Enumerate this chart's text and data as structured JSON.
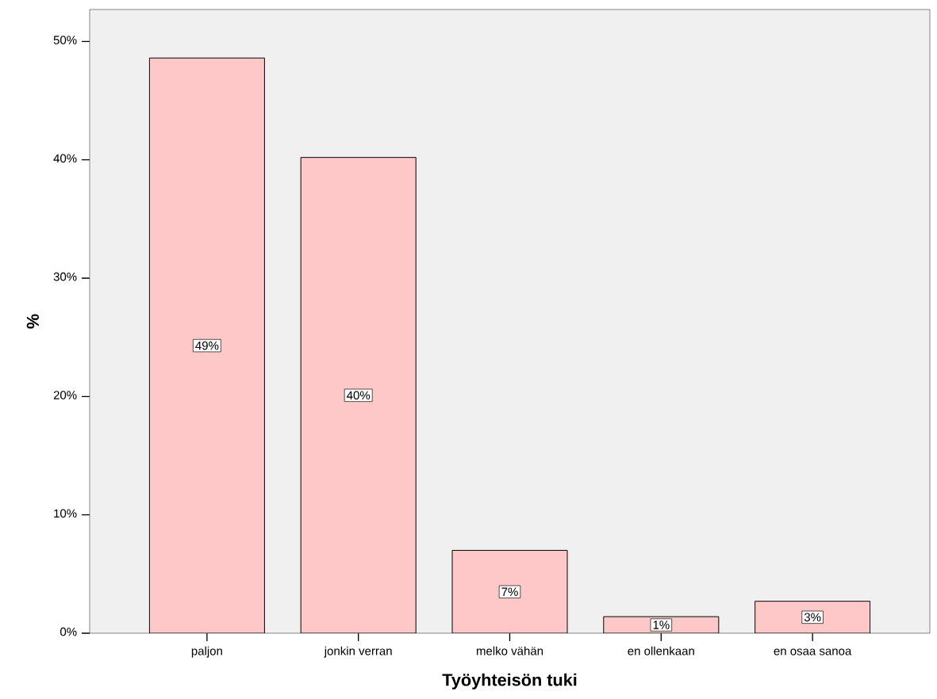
{
  "chart_data": {
    "type": "bar",
    "xlabel": "Työyhteisön tuki",
    "ylabel": "%",
    "categories": [
      "paljon",
      "jonkin verran",
      "melko vähän",
      "en ollenkaan",
      "en osaa sanoa"
    ],
    "values": [
      48.6,
      40.2,
      7.0,
      1.4,
      2.7
    ],
    "value_labels": [
      "49%",
      "40%",
      "7%",
      "1%",
      "3%"
    ],
    "color": "#ffc8c8",
    "ylim": [
      0,
      52.7
    ],
    "yticks": [
      {
        "value": 0,
        "label": "0%"
      },
      {
        "value": 10,
        "label": "10%"
      },
      {
        "value": 20,
        "label": "20%"
      },
      {
        "value": 30,
        "label": "30%"
      },
      {
        "value": 40,
        "label": "40%"
      },
      {
        "value": 50,
        "label": "50%"
      }
    ],
    "grid": false
  }
}
